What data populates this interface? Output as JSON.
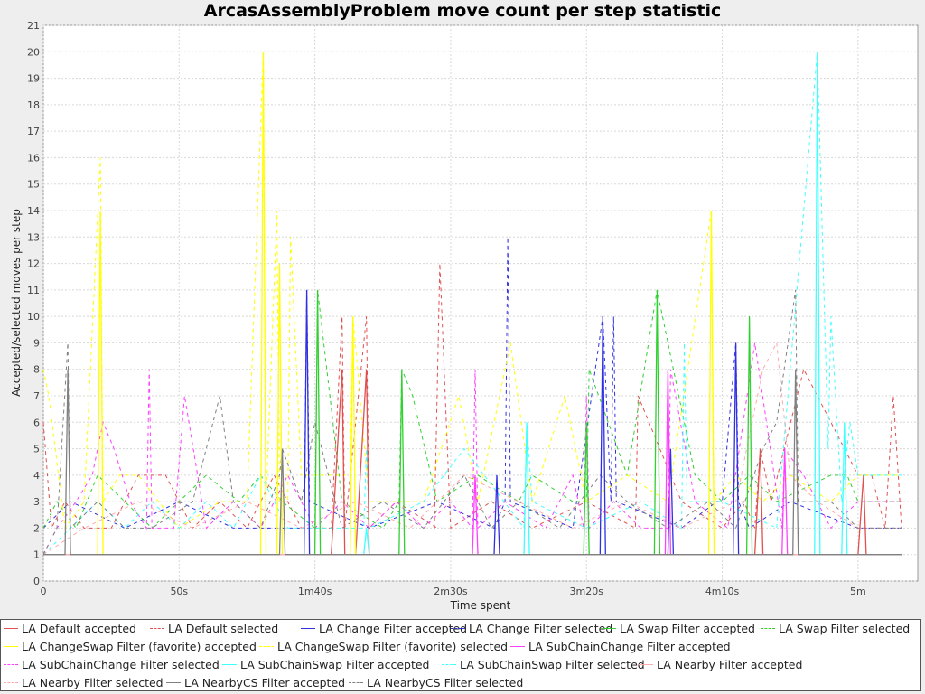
{
  "chart_data": {
    "type": "line",
    "title": "ArcasAssemblyProblem move count per step statistic",
    "xlabel": "Time spent",
    "ylabel": "Accepted/selected moves per step",
    "xlim_seconds": [
      0,
      322
    ],
    "ylim": [
      0,
      21
    ],
    "yticks": [
      0,
      1,
      2,
      3,
      4,
      5,
      6,
      7,
      8,
      9,
      10,
      11,
      12,
      13,
      14,
      15,
      16,
      17,
      18,
      19,
      20,
      21
    ],
    "xticks": [
      {
        "value": 0,
        "label": "0"
      },
      {
        "value": 50,
        "label": "50s"
      },
      {
        "value": 100,
        "label": "1m40s"
      },
      {
        "value": 150,
        "label": "2m30s"
      },
      {
        "value": 200,
        "label": "3m20s"
      },
      {
        "value": 250,
        "label": "4m10s"
      },
      {
        "value": 300,
        "label": "5m"
      }
    ],
    "grid": true,
    "legend_position": "bottom",
    "series": [
      {
        "name": "LA Default accepted",
        "color": "#e05050",
        "style": "solid",
        "x": [
          0,
          5,
          10,
          20,
          40,
          60,
          80,
          106,
          110,
          111,
          115,
          119,
          120,
          130,
          150,
          170,
          183,
          200,
          220,
          245,
          262,
          264,
          265,
          290,
          300,
          302,
          303,
          310,
          316
        ],
        "y": [
          1,
          1,
          1,
          1,
          1,
          1,
          1,
          1,
          8,
          1,
          1,
          8,
          1,
          1,
          1,
          1,
          1,
          1,
          1,
          1,
          1,
          5,
          1,
          1,
          1,
          4,
          1,
          1,
          1
        ]
      },
      {
        "name": "LA Default selected",
        "color": "#e05050",
        "style": "dashed",
        "x": [
          0,
          3,
          8,
          15,
          25,
          35,
          45,
          55,
          65,
          75,
          85,
          95,
          106,
          110,
          111,
          119,
          120,
          130,
          145,
          144,
          146,
          150,
          165,
          180,
          200,
          218,
          219,
          235,
          250,
          258,
          262,
          264,
          268,
          280,
          300,
          305,
          310,
          313,
          316
        ],
        "y": [
          6,
          2,
          3,
          2,
          2,
          4,
          4,
          2,
          3,
          2,
          4,
          2,
          2,
          10,
          2,
          10,
          2,
          3,
          2,
          2,
          12,
          2,
          3,
          2,
          3,
          2,
          7,
          3,
          2,
          3,
          2,
          5,
          3,
          8,
          4,
          4,
          2,
          7,
          2
        ]
      },
      {
        "name": "LA Change Filter accepted",
        "color": "#3030e0",
        "style": "solid",
        "x": [
          0,
          96,
          97,
          98,
          166,
          167,
          168,
          205,
          206,
          207,
          230,
          231,
          232,
          254,
          255,
          256,
          270,
          300,
          316
        ],
        "y": [
          1,
          1,
          11,
          1,
          1,
          4,
          1,
          1,
          10,
          1,
          1,
          5,
          1,
          1,
          9,
          1,
          1,
          1,
          1
        ]
      },
      {
        "name": "LA Change Filter selected",
        "color": "#3030e0",
        "style": "dashed",
        "x": [
          0,
          10,
          30,
          50,
          70,
          96,
          97,
          98,
          120,
          145,
          166,
          170,
          171,
          172,
          195,
          206,
          209,
          210,
          211,
          235,
          248,
          250,
          255,
          256,
          260,
          275,
          300,
          316
        ],
        "y": [
          2,
          3,
          2,
          3,
          2,
          2,
          11,
          3,
          2,
          3,
          2,
          3,
          13,
          3,
          2,
          10,
          3,
          10,
          3,
          2,
          3,
          3,
          9,
          3,
          2,
          3,
          2,
          2
        ]
      },
      {
        "name": "LA Swap Filter accepted",
        "color": "#30d030",
        "style": "solid",
        "x": [
          0,
          100,
          101,
          102,
          131,
          132,
          133,
          199,
          200,
          201,
          225,
          226,
          227,
          248,
          259,
          260,
          261,
          290,
          316
        ],
        "y": [
          1,
          1,
          11,
          1,
          1,
          8,
          1,
          1,
          6,
          1,
          1,
          11,
          1,
          1,
          1,
          10,
          1,
          1,
          1
        ]
      },
      {
        "name": "LA Swap Filter selected",
        "color": "#30d030",
        "style": "dashed",
        "x": [
          0,
          5,
          12,
          20,
          30,
          40,
          50,
          60,
          72,
          80,
          88,
          100,
          101,
          110,
          125,
          131,
          132,
          136,
          145,
          160,
          175,
          180,
          195,
          200,
          201,
          215,
          226,
          240,
          250,
          260,
          270,
          290,
          296,
          300,
          316
        ],
        "y": [
          2,
          3,
          2,
          4,
          3,
          2,
          3,
          4,
          3,
          4,
          3,
          2,
          11,
          3,
          2,
          3,
          8,
          7,
          3,
          4,
          3,
          4,
          3,
          3,
          8,
          4,
          11,
          4,
          3,
          4,
          3,
          4,
          4,
          3,
          3
        ]
      },
      {
        "name": "LA ChangeSwap Filter (favorite) accepted",
        "color": "#ffff00",
        "style": "solid",
        "x": [
          0,
          20,
          21,
          22,
          80,
          81,
          82,
          86,
          87,
          88,
          113,
          114,
          115,
          150,
          175,
          245,
          246,
          247,
          265,
          290,
          316
        ],
        "y": [
          1,
          1,
          14,
          1,
          1,
          20,
          1,
          1,
          12,
          1,
          1,
          10,
          1,
          1,
          1,
          1,
          14,
          1,
          1,
          1,
          1
        ]
      },
      {
        "name": "LA ChangeSwap Filter (favorite) selected",
        "color": "#ffff00",
        "style": "dashed",
        "x": [
          0,
          2,
          8,
          15,
          21,
          22,
          28,
          35,
          50,
          65,
          75,
          81,
          82,
          86,
          87,
          90,
          91,
          95,
          113,
          114,
          120,
          140,
          153,
          160,
          172,
          180,
          192,
          200,
          215,
          230,
          246,
          247,
          255,
          265,
          275,
          290,
          300,
          316
        ],
        "y": [
          8,
          7,
          2,
          3,
          16,
          3,
          4,
          4,
          2,
          3,
          3,
          20,
          3,
          14,
          3,
          3,
          13,
          4,
          4,
          10,
          3,
          3,
          7,
          3,
          9,
          3,
          7,
          3,
          4,
          3,
          14,
          3,
          4,
          3,
          4,
          3,
          4,
          4
        ]
      },
      {
        "name": "LA SubChainChange Filter accepted",
        "color": "#ff40ff",
        "style": "solid",
        "x": [
          0,
          158,
          159,
          160,
          229,
          230,
          231,
          272,
          273,
          274,
          316
        ],
        "y": [
          1,
          1,
          4,
          1,
          1,
          8,
          1,
          1,
          5,
          1,
          1
        ]
      },
      {
        "name": "LA SubChainChange Filter selected",
        "color": "#ff40ff",
        "style": "dashed",
        "x": [
          0,
          5,
          12,
          18,
          22,
          26,
          32,
          38,
          39,
          40,
          48,
          52,
          60,
          70,
          80,
          90,
          100,
          110,
          120,
          130,
          140,
          150,
          158,
          159,
          160,
          170,
          185,
          195,
          199,
          200,
          201,
          210,
          220,
          230,
          231,
          240,
          252,
          262,
          272,
          273,
          280,
          290,
          300,
          316
        ],
        "y": [
          1,
          2,
          3,
          4,
          6,
          5,
          3,
          2,
          8,
          2,
          2,
          7,
          2,
          3,
          2,
          4,
          2,
          3,
          2,
          3,
          2,
          3,
          2,
          8,
          2,
          3,
          2,
          4,
          2,
          7,
          2,
          3,
          2,
          2,
          8,
          3,
          2,
          9,
          2,
          5,
          4,
          2,
          3,
          3
        ]
      },
      {
        "name": "LA SubChainSwap Filter accepted",
        "color": "#40ffff",
        "style": "solid",
        "x": [
          0,
          118,
          119,
          120,
          177,
          178,
          179,
          284,
          285,
          286,
          294,
          295,
          296,
          316
        ],
        "y": [
          1,
          1,
          2,
          1,
          1,
          6,
          1,
          1,
          20,
          1,
          1,
          6,
          1,
          1
        ]
      },
      {
        "name": "LA SubChainSwap Filter selected",
        "color": "#40ffff",
        "style": "dashed",
        "x": [
          0,
          10,
          20,
          30,
          40,
          50,
          60,
          70,
          80,
          90,
          118,
          119,
          120,
          140,
          155,
          177,
          178,
          180,
          200,
          220,
          235,
          236,
          237,
          250,
          270,
          285,
          289,
          290,
          294,
          297,
          300,
          316
        ],
        "y": [
          1,
          2,
          3,
          2,
          3,
          2,
          3,
          2,
          4,
          2,
          2,
          5,
          2,
          3,
          5,
          2,
          6,
          3,
          2,
          3,
          2,
          9,
          3,
          3,
          2,
          20,
          5,
          10,
          3,
          6,
          4,
          4
        ]
      },
      {
        "name": "LA Nearby Filter accepted",
        "color": "#ffaaaa",
        "style": "solid",
        "x": [
          0,
          316
        ],
        "y": [
          1,
          1
        ]
      },
      {
        "name": "LA Nearby Filter selected",
        "color": "#ffaaaa",
        "style": "dashed",
        "x": [
          0,
          15,
          35,
          55,
          75,
          95,
          115,
          135,
          155,
          175,
          195,
          215,
          235,
          255,
          265,
          270,
          275,
          285,
          300,
          316
        ],
        "y": [
          1,
          2,
          3,
          2,
          3,
          2,
          3,
          2,
          4,
          3,
          2,
          3,
          2,
          3,
          8,
          9,
          4,
          3,
          2,
          2
        ]
      },
      {
        "name": "LA NearbyCS Filter accepted",
        "color": "#808080",
        "style": "solid",
        "x": [
          0,
          8,
          9,
          10,
          87,
          88,
          89,
          276,
          277,
          278,
          316
        ],
        "y": [
          1,
          1,
          8,
          1,
          1,
          5,
          1,
          1,
          8,
          1,
          1
        ]
      },
      {
        "name": "LA NearbyCS Filter selected",
        "color": "#808080",
        "style": "dashed",
        "x": [
          0,
          5,
          9,
          10,
          20,
          30,
          40,
          55,
          65,
          70,
          80,
          87,
          88,
          95,
          100,
          110,
          125,
          140,
          155,
          165,
          175,
          190,
          205,
          215,
          230,
          245,
          255,
          265,
          270,
          277,
          278,
          290,
          300,
          316
        ],
        "y": [
          1,
          2,
          9,
          2,
          3,
          2,
          2,
          3,
          7,
          3,
          2,
          4,
          5,
          3,
          6,
          2,
          3,
          2,
          4,
          2,
          3,
          2,
          4,
          3,
          2,
          3,
          2,
          5,
          6,
          11,
          3,
          3,
          2,
          2
        ]
      }
    ]
  }
}
